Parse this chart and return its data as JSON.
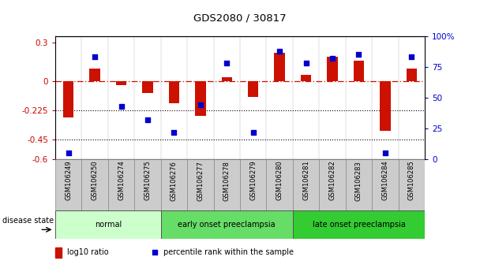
{
  "title": "GDS2080 / 30817",
  "samples": [
    "GSM106249",
    "GSM106250",
    "GSM106274",
    "GSM106275",
    "GSM106276",
    "GSM106277",
    "GSM106278",
    "GSM106279",
    "GSM106280",
    "GSM106281",
    "GSM106282",
    "GSM106283",
    "GSM106284",
    "GSM106285"
  ],
  "log10_ratio": [
    -0.28,
    0.1,
    -0.03,
    -0.09,
    -0.17,
    -0.265,
    0.03,
    -0.12,
    0.22,
    0.05,
    0.19,
    0.16,
    -0.38,
    0.1
  ],
  "percentile_rank": [
    5,
    83,
    43,
    32,
    22,
    44,
    78,
    22,
    88,
    78,
    82,
    85,
    5,
    83
  ],
  "groups": [
    {
      "label": "normal",
      "start": 0,
      "end": 4,
      "color": "#ccffcc"
    },
    {
      "label": "early onset preeclampsia",
      "start": 4,
      "end": 9,
      "color": "#66dd66"
    },
    {
      "label": "late onset preeclampsia",
      "start": 9,
      "end": 14,
      "color": "#33cc33"
    }
  ],
  "bar_color": "#cc1100",
  "dot_color": "#0000cc",
  "ylim_left": [
    -0.6,
    0.35
  ],
  "ylim_right": [
    0,
    100
  ],
  "yticks_left": [
    0.3,
    0,
    -0.225,
    -0.45,
    -0.6
  ],
  "yticks_right": [
    100,
    75,
    50,
    25,
    0
  ],
  "dotted_lines": [
    -0.225,
    -0.45
  ],
  "label_color_left": "#cc0000",
  "label_color_right": "#0000cc",
  "background_color": "#ffffff",
  "sample_box_color": "#cccccc",
  "bar_width": 0.4
}
